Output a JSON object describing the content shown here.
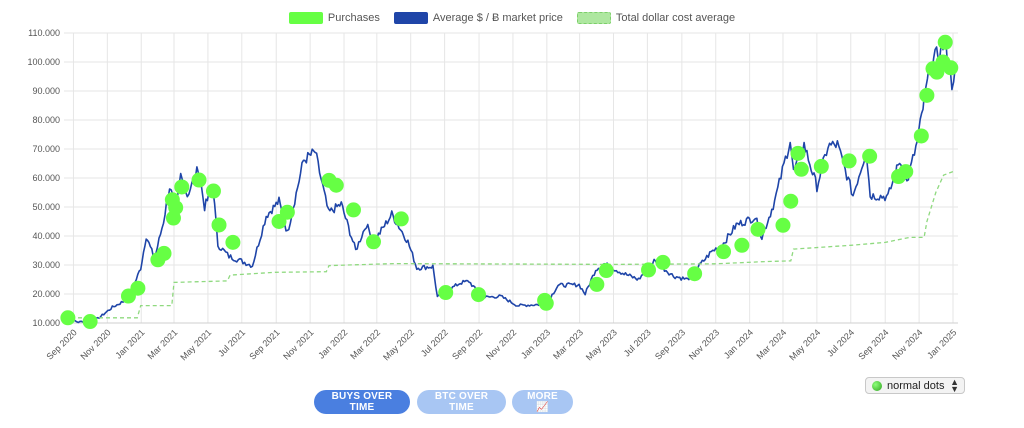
{
  "legend": {
    "purchases": "Purchases",
    "avg_price": "Average $ / Ƀ market price",
    "dca": "Total dollar cost average"
  },
  "buttons": {
    "buys": "BUYS OVER TIME",
    "btc": "BTC OVER TIME",
    "more": "MORE 📈"
  },
  "select": {
    "value": "normal dots"
  },
  "colors": {
    "purchase": "#66ff44",
    "price_line": "#1f45a8",
    "dca_line": "#8fd97f",
    "grid": "#e6e6e6",
    "button_active": "#4a7fe0",
    "button_inactive": "#a8c6f3"
  },
  "chart_data": {
    "type": "line",
    "ylim": [
      10000,
      110000
    ],
    "y_ticks": [
      "10.000",
      "20.000",
      "30.000",
      "40.000",
      "50.000",
      "60.000",
      "70.000",
      "80.000",
      "90.000",
      "100.000",
      "110.000"
    ],
    "x_ticks": [
      "Sep 2020",
      "Nov 2020",
      "Jan 2021",
      "Mar 2021",
      "May 2021",
      "Jul 2021",
      "Sep 2021",
      "Nov 2021",
      "Jan 2022",
      "Mar 2022",
      "May 2022",
      "Jul 2022",
      "Sep 2022",
      "Nov 2022",
      "Jan 2023",
      "Mar 2023",
      "May 2023",
      "Jul 2023",
      "Sep 2023",
      "Nov 2023",
      "Jan 2024",
      "Mar 2024",
      "May 2024",
      "Jul 2024",
      "Sep 2024",
      "Nov 2024",
      "Jan 2025"
    ],
    "xlim": [
      "2020-08-15",
      "2025-01-10"
    ],
    "grid": true,
    "legend_position": "top",
    "series": [
      {
        "name": "Average $ / Ƀ market price",
        "points": [
          [
            "2020-08-15",
            11800
          ],
          [
            "2020-09-10",
            10300
          ],
          [
            "2020-10-15",
            11500
          ],
          [
            "2020-11-10",
            15400
          ],
          [
            "2020-12-10",
            18500
          ],
          [
            "2020-12-31",
            29000
          ],
          [
            "2021-01-10",
            40000
          ],
          [
            "2021-01-25",
            32000
          ],
          [
            "2021-02-10",
            45000
          ],
          [
            "2021-02-21",
            57000
          ],
          [
            "2021-03-05",
            49000
          ],
          [
            "2021-03-13",
            61000
          ],
          [
            "2021-03-25",
            54000
          ],
          [
            "2021-04-14",
            63500
          ],
          [
            "2021-04-25",
            50000
          ],
          [
            "2021-05-10",
            57000
          ],
          [
            "2021-05-19",
            37000
          ],
          [
            "2021-06-08",
            33000
          ],
          [
            "2021-06-22",
            32000
          ],
          [
            "2021-07-20",
            29800
          ],
          [
            "2021-08-14",
            47000
          ],
          [
            "2021-09-06",
            52000
          ],
          [
            "2021-09-21",
            41000
          ],
          [
            "2021-10-20",
            66000
          ],
          [
            "2021-11-10",
            69000
          ],
          [
            "2021-12-04",
            48000
          ],
          [
            "2021-12-27",
            51000
          ],
          [
            "2022-01-22",
            35000
          ],
          [
            "2022-02-10",
            44000
          ],
          [
            "2022-02-24",
            38000
          ],
          [
            "2022-03-28",
            47500
          ],
          [
            "2022-04-26",
            38000
          ],
          [
            "2022-05-12",
            29000
          ],
          [
            "2022-06-10",
            29500
          ],
          [
            "2022-06-18",
            19000
          ],
          [
            "2022-07-29",
            23800
          ],
          [
            "2022-08-14",
            24400
          ],
          [
            "2022-09-06",
            18800
          ],
          [
            "2022-10-10",
            19200
          ],
          [
            "2022-11-09",
            16000
          ],
          [
            "2022-12-31",
            16500
          ],
          [
            "2023-01-21",
            23000
          ],
          [
            "2023-02-28",
            23200
          ],
          [
            "2023-03-11",
            20000
          ],
          [
            "2023-03-30",
            28500
          ],
          [
            "2023-04-14",
            30400
          ],
          [
            "2023-05-20",
            27000
          ],
          [
            "2023-06-15",
            25000
          ],
          [
            "2023-07-13",
            31400
          ],
          [
            "2023-08-17",
            26200
          ],
          [
            "2023-09-11",
            25000
          ],
          [
            "2023-10-24",
            34500
          ],
          [
            "2023-11-15",
            37500
          ],
          [
            "2023-12-08",
            43800
          ],
          [
            "2024-01-11",
            46500
          ],
          [
            "2024-01-23",
            39500
          ],
          [
            "2024-02-15",
            52000
          ],
          [
            "2024-03-14",
            73000
          ],
          [
            "2024-03-20",
            62000
          ],
          [
            "2024-04-08",
            71500
          ],
          [
            "2024-05-01",
            57000
          ],
          [
            "2024-05-21",
            71000
          ],
          [
            "2024-06-07",
            71500
          ],
          [
            "2024-07-05",
            54000
          ],
          [
            "2024-07-29",
            69500
          ],
          [
            "2024-08-05",
            54000
          ],
          [
            "2024-09-06",
            53500
          ],
          [
            "2024-09-27",
            66000
          ],
          [
            "2024-10-10",
            58500
          ],
          [
            "2024-10-29",
            72500
          ],
          [
            "2024-11-13",
            90000
          ],
          [
            "2024-11-22",
            99000
          ],
          [
            "2024-12-05",
            103000
          ],
          [
            "2024-12-17",
            106500
          ],
          [
            "2024-12-30",
            92500
          ],
          [
            "2025-01-05",
            98000
          ]
        ]
      },
      {
        "name": "Total dollar cost average",
        "points": [
          [
            "2020-08-15",
            11800
          ],
          [
            "2020-12-25",
            11800
          ],
          [
            "2020-12-31",
            16000
          ],
          [
            "2021-02-25",
            16000
          ],
          [
            "2021-03-01",
            24000
          ],
          [
            "2021-06-05",
            24500
          ],
          [
            "2021-06-10",
            26500
          ],
          [
            "2021-08-30",
            27500
          ],
          [
            "2021-11-30",
            27700
          ],
          [
            "2021-12-05",
            29800
          ],
          [
            "2022-04-01",
            30500
          ],
          [
            "2023-05-01",
            30200
          ],
          [
            "2023-11-01",
            30400
          ],
          [
            "2024-02-01",
            31200
          ],
          [
            "2024-03-15",
            31400
          ],
          [
            "2024-03-20",
            35500
          ],
          [
            "2024-07-01",
            36800
          ],
          [
            "2024-09-01",
            37800
          ],
          [
            "2024-10-15",
            39500
          ],
          [
            "2024-11-10",
            39500
          ],
          [
            "2024-11-15",
            45000
          ],
          [
            "2024-12-01",
            55000
          ],
          [
            "2024-12-15",
            61000
          ],
          [
            "2025-01-05",
            62500
          ]
        ]
      }
    ],
    "purchases": [
      [
        "2020-08-22",
        11800
      ],
      [
        "2020-10-01",
        10500
      ],
      [
        "2020-12-09",
        19300
      ],
      [
        "2020-12-26",
        22000
      ],
      [
        "2021-01-31",
        31800
      ],
      [
        "2021-02-11",
        34000
      ],
      [
        "2021-02-28",
        46200
      ],
      [
        "2021-03-04",
        49800
      ],
      [
        "2021-02-26",
        52500
      ],
      [
        "2021-03-15",
        56900
      ],
      [
        "2021-04-15",
        59300
      ],
      [
        "2021-05-11",
        55500
      ],
      [
        "2021-05-21",
        43800
      ],
      [
        "2021-06-15",
        37800
      ],
      [
        "2021-09-06",
        45000
      ],
      [
        "2021-09-21",
        48200
      ],
      [
        "2021-12-05",
        59200
      ],
      [
        "2021-12-18",
        57500
      ],
      [
        "2022-01-18",
        49000
      ],
      [
        "2022-02-23",
        38000
      ],
      [
        "2022-04-14",
        45900
      ],
      [
        "2022-07-03",
        20500
      ],
      [
        "2022-08-31",
        19800
      ],
      [
        "2022-12-28",
        17800
      ],
      [
        "2022-12-31",
        16800
      ],
      [
        "2023-04-01",
        23300
      ],
      [
        "2023-04-18",
        28100
      ],
      [
        "2023-07-03",
        28300
      ],
      [
        "2023-07-29",
        30900
      ],
      [
        "2023-09-24",
        27000
      ],
      [
        "2023-11-15",
        34600
      ],
      [
        "2023-12-18",
        36800
      ],
      [
        "2024-01-16",
        42300
      ],
      [
        "2024-03-01",
        43700
      ],
      [
        "2024-03-15",
        52000
      ],
      [
        "2024-03-28",
        68500
      ],
      [
        "2024-04-03",
        63000
      ],
      [
        "2024-05-09",
        64000
      ],
      [
        "2024-06-28",
        65900
      ],
      [
        "2024-08-04",
        67500
      ],
      [
        "2024-09-25",
        60500
      ],
      [
        "2024-10-08",
        62200
      ],
      [
        "2024-11-05",
        74500
      ],
      [
        "2024-11-15",
        88500
      ],
      [
        "2024-11-26",
        97700
      ],
      [
        "2024-12-03",
        96500
      ],
      [
        "2024-12-14",
        100000
      ],
      [
        "2024-12-18",
        106800
      ],
      [
        "2024-12-28",
        98000
      ]
    ]
  }
}
